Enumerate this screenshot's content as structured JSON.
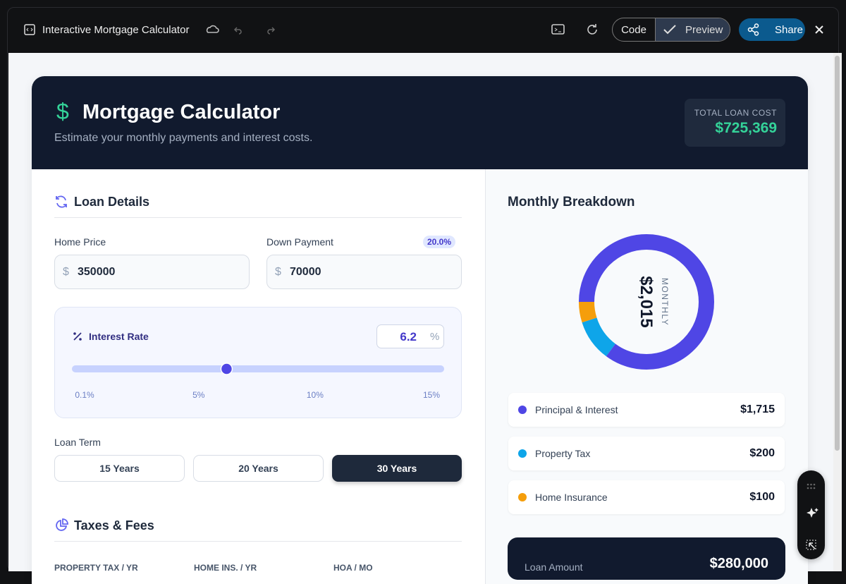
{
  "toolbar": {
    "title": "Interactive Mortgage Calculator",
    "code": "Code",
    "preview": "Preview",
    "share": "Share"
  },
  "header": {
    "title": "Mortgage Calculator",
    "subtitle": "Estimate your monthly payments and interest costs.",
    "total_label": "TOTAL LOAN COST",
    "total_value": "$725,369"
  },
  "loan_details": {
    "title": "Loan Details",
    "currency": "$",
    "home_price_label": "Home Price",
    "home_price": 350000,
    "down_payment_label": "Down Payment",
    "down_payment_pct": "20.0%",
    "down_payment": 70000,
    "interest": {
      "label": "Interest Rate",
      "value": 6.2,
      "unit": "%",
      "ticks": [
        {
          "value": 0.1,
          "label": "0.1%"
        },
        {
          "value": 5,
          "label": "5%"
        },
        {
          "value": 10,
          "label": "10%"
        },
        {
          "value": 15,
          "label": "15%"
        }
      ]
    },
    "term_label": "Loan Term",
    "terms": [
      "15 Years",
      "20 Years",
      "30 Years"
    ]
  },
  "taxes": {
    "title": "Taxes & Fees",
    "columns": [
      "PROPERTY TAX / YR",
      "HOME INS. / YR",
      "HOA / MO"
    ]
  },
  "breakdown": {
    "title": "Monthly Breakdown",
    "center_label": "MONTHLY",
    "center_value": "$2,015",
    "items": [
      {
        "name": "Principal & Interest",
        "color": "#4f46e5",
        "value": 1715,
        "value_label": "$1,715"
      },
      {
        "name": "Property Tax",
        "color": "#0ea5e9",
        "value": 200,
        "value_label": "$200"
      },
      {
        "name": "Home Insurance",
        "color": "#f59e0b",
        "value": 100,
        "value_label": "$100"
      }
    ]
  },
  "summary": {
    "loan_amount_label": "Loan Amount",
    "loan_amount": "$280,000"
  }
}
